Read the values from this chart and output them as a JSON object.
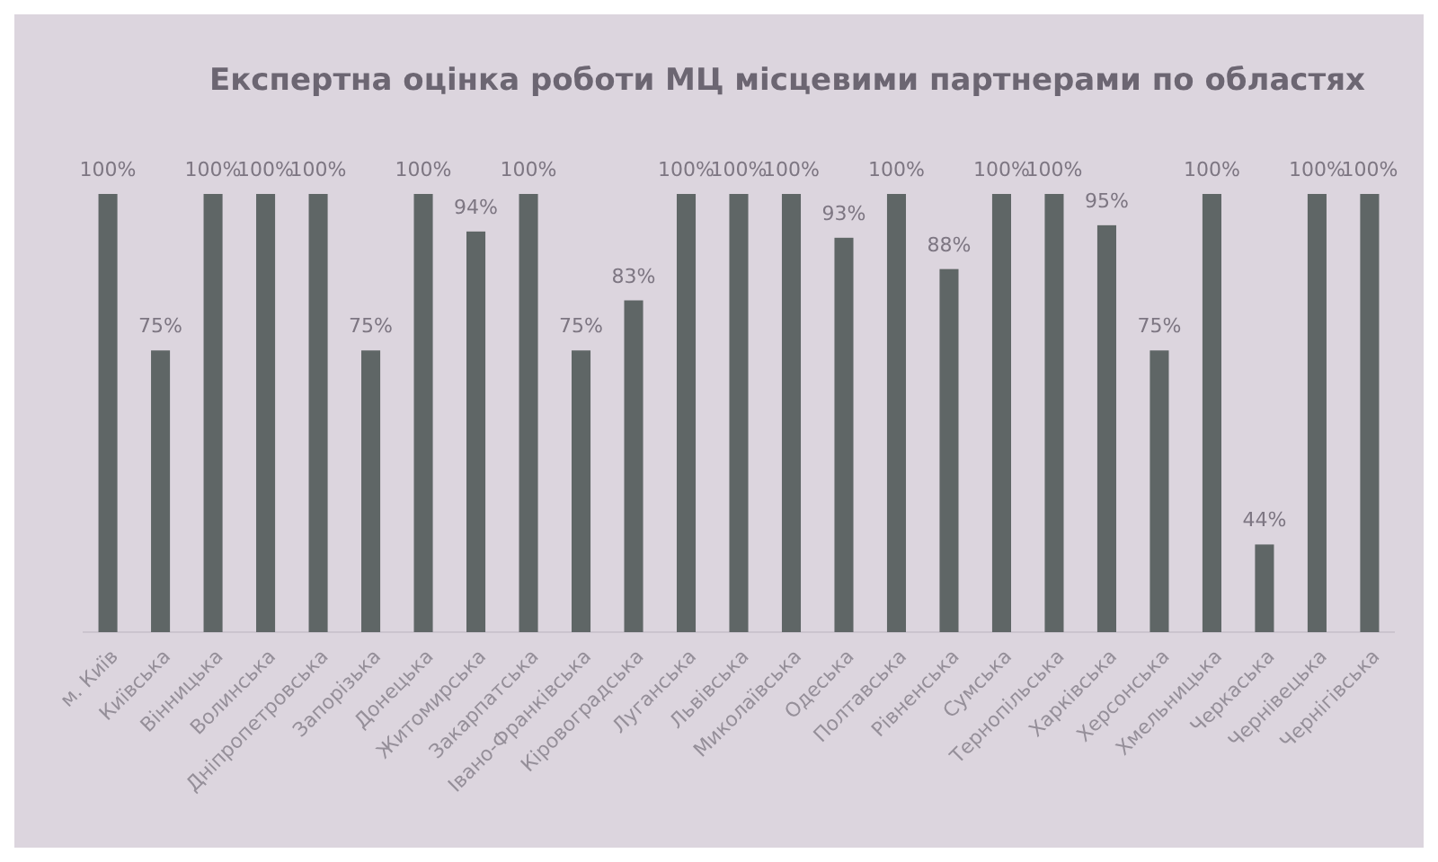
{
  "chart_data": {
    "type": "bar",
    "title": "Експертна оцінка роботи МЦ місцевими партнерами по областях",
    "categories": [
      "м. Київ",
      "Київська",
      "Вінницька",
      "Волинська",
      "Дніпропетровська",
      "Запорізька",
      "Донецька",
      "Житомирська",
      "Закарпатська",
      "Івано-Франківська",
      "Кіровоградська",
      "Луганська",
      "Львівська",
      "Миколаївська",
      "Одеська",
      "Полтавська",
      "Рівненська",
      "Сумська",
      "Тернопільська",
      "Харківська",
      "Херсонська",
      "Хмельницька",
      "Черкаська",
      "Чернівецька",
      "Чернігівська"
    ],
    "values": [
      100,
      75,
      100,
      100,
      100,
      75,
      100,
      94,
      100,
      75,
      83,
      100,
      100,
      100,
      93,
      100,
      88,
      100,
      100,
      95,
      75,
      100,
      44,
      100,
      100
    ],
    "value_labels": [
      "100%",
      "75%",
      "100%",
      "100%",
      "100%",
      "75%",
      "100%",
      "94%",
      "100%",
      "75%",
      "83%",
      "100%",
      "100%",
      "100%",
      "93%",
      "100%",
      "88%",
      "100%",
      "100%",
      "95%",
      "75%",
      "100%",
      "44%",
      "100%",
      "100%"
    ],
    "color": "#5f6666",
    "ylim": [
      30,
      100
    ],
    "tick_labels": "x"
  }
}
